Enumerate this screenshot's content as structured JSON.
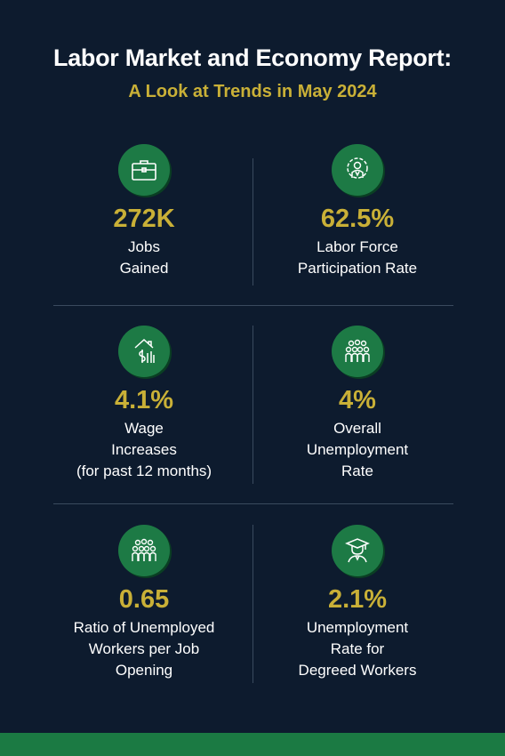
{
  "header": {
    "title": "Labor Market and Economy Report:",
    "subtitle": "A Look at Trends in May 2024"
  },
  "stats": [
    {
      "icon": "briefcase-icon",
      "value": "272K",
      "label": "Jobs\nGained"
    },
    {
      "icon": "gear-person-icon",
      "value": "62.5%",
      "label": "Labor Force\nParticipation Rate"
    },
    {
      "icon": "dollar-arrow-up-icon",
      "value": "4.1%",
      "label": "Wage\nIncreases\n(for past 12 months)"
    },
    {
      "icon": "group-people-icon",
      "value": "4%",
      "label": "Overall\nUnemployment\nRate"
    },
    {
      "icon": "group-people-icon",
      "value": "0.65",
      "label": "Ratio of Unemployed\nWorkers per Job\nOpening"
    },
    {
      "icon": "graduate-icon",
      "value": "2.1%",
      "label": "Unemployment\nRate for\nDegreed Workers"
    }
  ],
  "colors": {
    "background": "#0d1b2e",
    "accent_gold": "#c9b037",
    "icon_green": "#1d7a45",
    "footer_green": "#1b7a43"
  }
}
